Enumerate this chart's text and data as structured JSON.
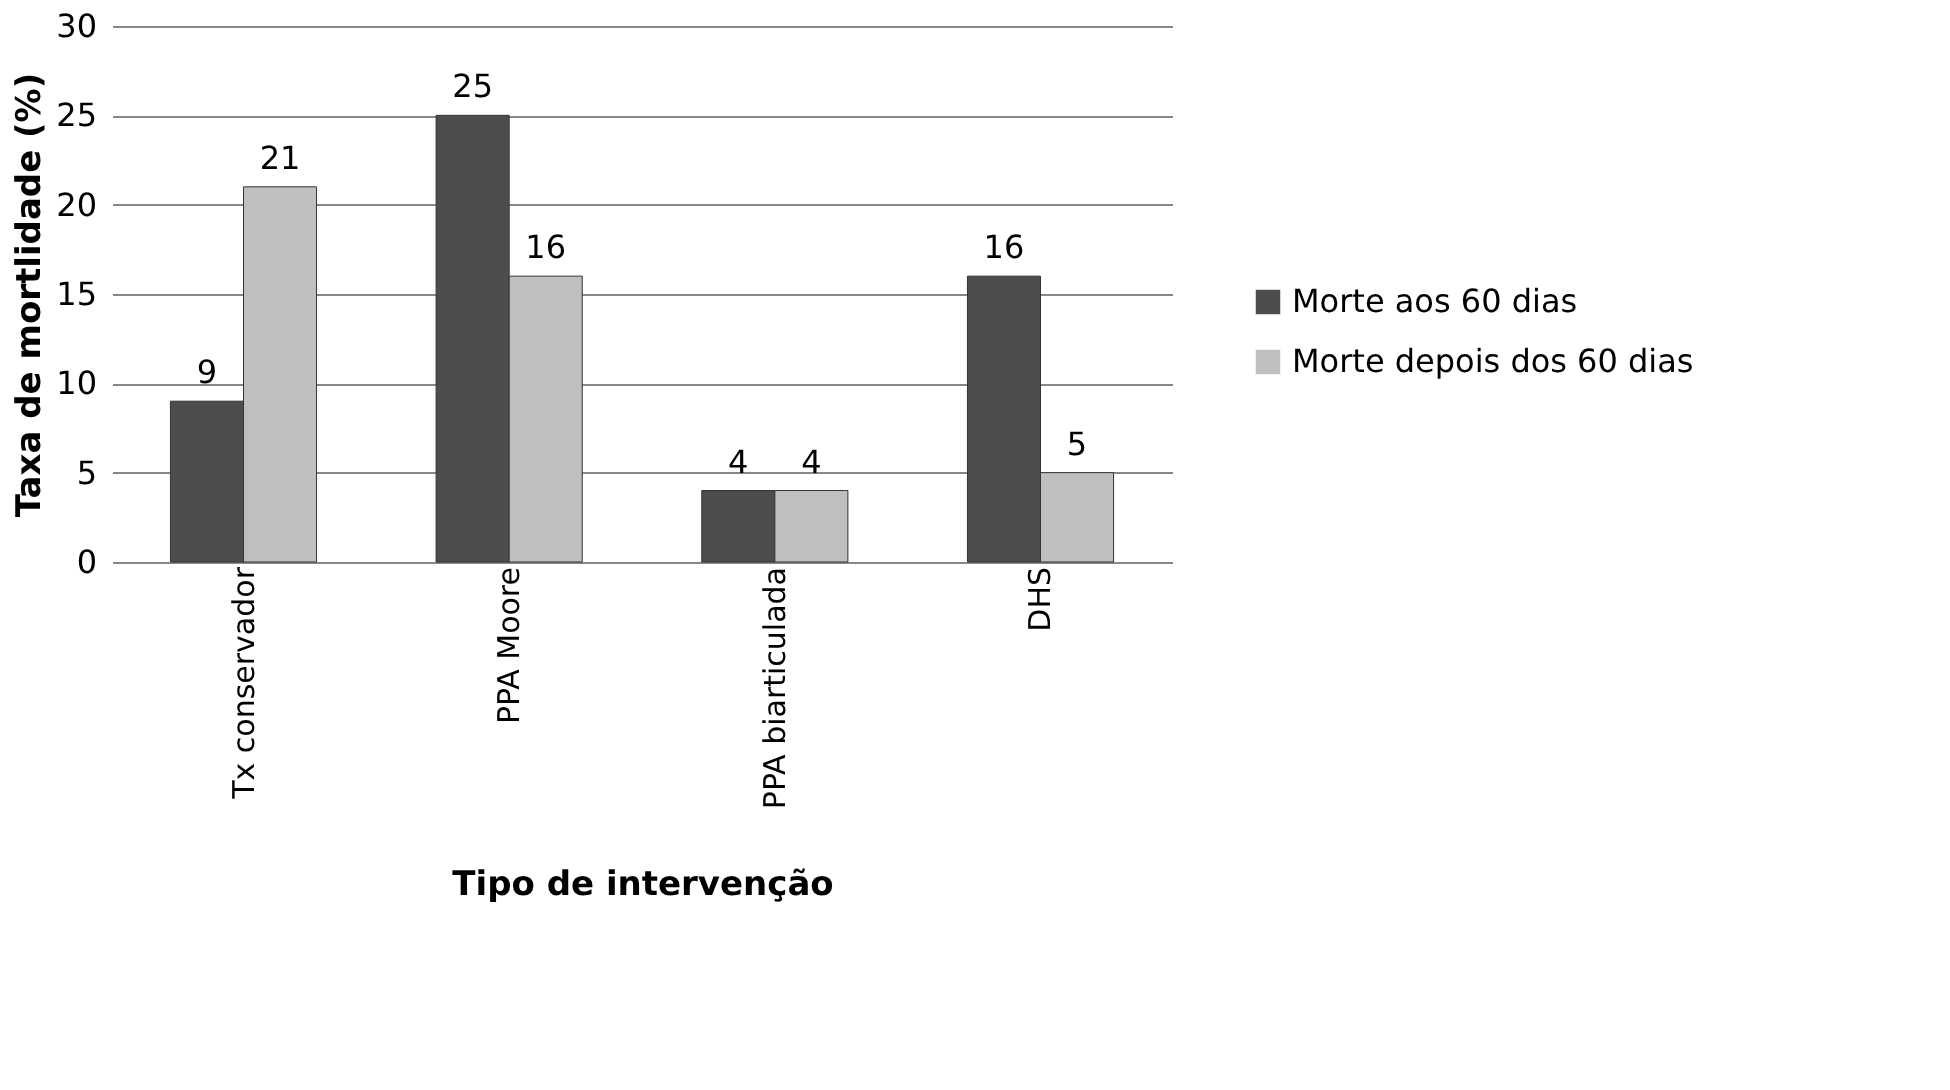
{
  "chart_data": {
    "type": "bar",
    "xlabel": "Tipo de intervenção",
    "ylabel": "Taxa de mortlidade  (%)",
    "categories": [
      "Tx conservador",
      "PPA Moore",
      "PPA biarticulada",
      "DHS"
    ],
    "series": [
      {
        "name": "Morte aos 60 dias",
        "color": "#4d4d4d",
        "values": [
          9,
          25,
          4,
          16
        ]
      },
      {
        "name": "Morte depois dos 60 dias",
        "color": "#bfbfbf",
        "values": [
          21,
          16,
          4,
          5
        ]
      }
    ],
    "ylim": [
      0,
      30
    ],
    "yticks": [
      0,
      5,
      10,
      15,
      20,
      25,
      30
    ],
    "grid": "y",
    "legend": "right",
    "data_labels": true
  }
}
